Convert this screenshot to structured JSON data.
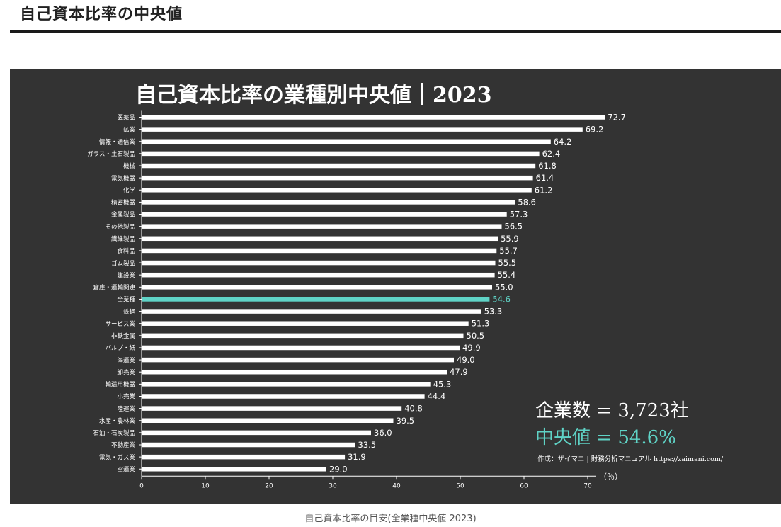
{
  "page": {
    "section_title": "自己資本比率の中央値",
    "caption": "自己資本比率の目安(全業種中央値 2023)"
  },
  "colors": {
    "panel_bg": "#333333",
    "bar": "#ffffff",
    "highlight": "#5fd3c6",
    "text": "#ffffff"
  },
  "chart_data": {
    "type": "bar",
    "orientation": "horizontal",
    "title": "自己資本比率の業種別中央値｜2023",
    "xunit": "（％）",
    "xlim": [
      0,
      70
    ],
    "xticks": [
      0,
      10,
      20,
      30,
      40,
      50,
      60,
      70
    ],
    "grid": false,
    "highlight_category": "全業種",
    "categories": [
      "医薬品",
      "鉱業",
      "情報・通信業",
      "ガラス・土石製品",
      "機械",
      "電気機器",
      "化学",
      "精密機器",
      "金属製品",
      "その他製品",
      "繊維製品",
      "食料品",
      "ゴム製品",
      "建設業",
      "倉庫・運輸関連",
      "全業種",
      "鉄鋼",
      "サービス業",
      "非鉄金属",
      "パルプ・紙",
      "海運業",
      "卸売業",
      "輸送用機器",
      "小売業",
      "陸運業",
      "水産・農林業",
      "石油・石炭製品",
      "不動産業",
      "電気・ガス業",
      "空運業"
    ],
    "values": [
      72.7,
      69.2,
      64.2,
      62.4,
      61.8,
      61.4,
      61.2,
      58.6,
      57.3,
      56.5,
      55.9,
      55.7,
      55.5,
      55.4,
      55.0,
      54.6,
      53.3,
      51.3,
      50.5,
      49.9,
      49.0,
      47.9,
      45.3,
      44.4,
      40.8,
      39.5,
      36.0,
      33.5,
      31.9,
      29.0
    ],
    "value_labels": [
      "72.7",
      "69.2",
      "64.2",
      "62.4",
      "61.8",
      "61.4",
      "61.2",
      "58.6",
      "57.3",
      "56.5",
      "55.9",
      "55.7",
      "55.5",
      "55.4",
      "55.0",
      "54.6",
      "53.3",
      "51.3",
      "50.5",
      "49.9",
      "49.0",
      "47.9",
      "45.3",
      "44.4",
      "40.8",
      "39.5",
      "36.0",
      "33.5",
      "31.9",
      "29.0"
    ],
    "annotations": {
      "company_count": "企業数 = 3,723社",
      "median": "中央値 = 54.6%",
      "credit": "作成：ザイマニ | 財務分析マニュアル https://zaimani.com/"
    }
  }
}
